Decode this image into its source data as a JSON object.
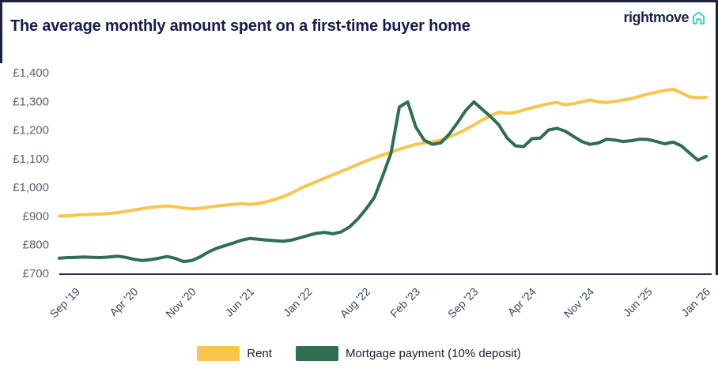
{
  "header": {
    "title": "The average monthly amount spent on a first-time buyer home"
  },
  "logo": {
    "text": "rightmove",
    "navy": "#1f2348",
    "house_color": "#2eddb3"
  },
  "colors": {
    "axis": "#262b4d",
    "y_tick_label": "#5d6173",
    "x_tick_label": "#40455e",
    "border": "#1d2142"
  },
  "chart_data": {
    "type": "line",
    "title": "The average monthly amount spent on a first-time buyer home",
    "xlabel": "",
    "ylabel": "",
    "currency_prefix": "£",
    "x_range": [
      "Jul 2019",
      "Jan 2026"
    ],
    "ylim": [
      700,
      1400
    ],
    "grid": false,
    "legend_position": "bottom-center",
    "y_ticks": [
      {
        "label": "£1,400",
        "value": 1400
      },
      {
        "label": "£1,300",
        "value": 1300
      },
      {
        "label": "£1,200",
        "value": 1200
      },
      {
        "label": "£1,100",
        "value": 1100
      },
      {
        "label": "£1,000",
        "value": 1000
      },
      {
        "label": "£900",
        "value": 900
      },
      {
        "label": "£800",
        "value": 800
      },
      {
        "label": "£700",
        "value": 700
      }
    ],
    "x_ticks": [
      {
        "label": "Sep '19",
        "index": 2
      },
      {
        "label": "Apr '20",
        "index": 9
      },
      {
        "label": "Nov '20",
        "index": 16
      },
      {
        "label": "Jun '21",
        "index": 23
      },
      {
        "label": "Jan '22",
        "index": 30
      },
      {
        "label": "Aug '22",
        "index": 37
      },
      {
        "label": "Feb '23",
        "index": 43
      },
      {
        "label": "Sep '23",
        "index": 50
      },
      {
        "label": "Apr '24",
        "index": 57
      },
      {
        "label": "Nov '24",
        "index": 64
      },
      {
        "label": "Jun '25",
        "index": 71
      },
      {
        "label": "Jan '26",
        "index": 78
      }
    ],
    "series": [
      {
        "id": "rent",
        "name": "Rent",
        "color": "#F9C54D",
        "values": [
          900,
          901,
          903,
          905,
          906,
          907,
          909,
          912,
          916,
          921,
          926,
          930,
          933,
          935,
          932,
          928,
          925,
          927,
          931,
          935,
          938,
          941,
          943,
          941,
          944,
          950,
          958,
          968,
          980,
          995,
          1008,
          1020,
          1032,
          1044,
          1056,
          1068,
          1080,
          1092,
          1103,
          1113,
          1123,
          1133,
          1142,
          1150,
          1155,
          1158,
          1165,
          1175,
          1188,
          1202,
          1218,
          1235,
          1250,
          1262,
          1258,
          1262,
          1270,
          1278,
          1285,
          1292,
          1296,
          1288,
          1292,
          1298,
          1305,
          1298,
          1296,
          1300,
          1305,
          1310,
          1318,
          1326,
          1332,
          1338,
          1342,
          1330,
          1316,
          1312,
          1314
        ]
      },
      {
        "id": "mortgage",
        "name": "Mortgage payment (10% deposit)",
        "color": "#2F6E50",
        "values": [
          753,
          755,
          756,
          757,
          756,
          755,
          757,
          760,
          756,
          749,
          745,
          748,
          753,
          759,
          752,
          741,
          745,
          758,
          775,
          788,
          797,
          806,
          816,
          822,
          819,
          816,
          814,
          812,
          816,
          824,
          832,
          840,
          843,
          838,
          845,
          862,
          890,
          925,
          965,
          1040,
          1120,
          1280,
          1298,
          1210,
          1165,
          1150,
          1155,
          1185,
          1225,
          1268,
          1298,
          1272,
          1247,
          1218,
          1172,
          1145,
          1142,
          1170,
          1172,
          1200,
          1206,
          1196,
          1178,
          1160,
          1150,
          1155,
          1168,
          1165,
          1160,
          1163,
          1168,
          1167,
          1160,
          1152,
          1158,
          1145,
          1120,
          1095,
          1108
        ]
      }
    ]
  },
  "legend": {
    "rent_label": "Rent",
    "mortgage_label": "Mortgage payment (10% deposit)"
  }
}
